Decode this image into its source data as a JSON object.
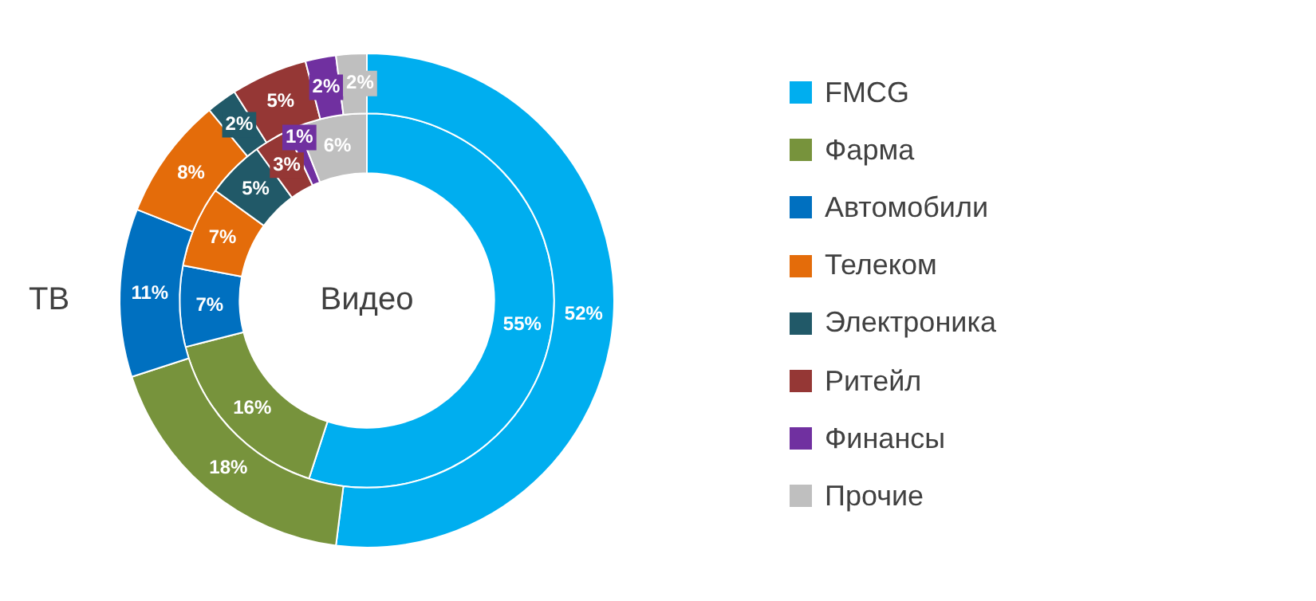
{
  "chart_data": {
    "type": "donut",
    "categories": [
      "FMCG",
      "Фарма",
      "Автомобили",
      "Телеком",
      "Электроника",
      "Ритейл",
      "Финансы",
      "Прочие"
    ],
    "colors": [
      "#00aeef",
      "#77933c",
      "#0070c0",
      "#e46c0a",
      "#215968",
      "#953735",
      "#7030a0",
      "#bfbfbf"
    ],
    "series": [
      {
        "name": "ТВ",
        "values": [
          52,
          18,
          11,
          8,
          2,
          5,
          2,
          2
        ],
        "value_labels": [
          "52%",
          "18%",
          "11%",
          "8%",
          "2%",
          "5%",
          "2%",
          "2%"
        ]
      },
      {
        "name": "Видео",
        "values": [
          55,
          16,
          7,
          7,
          5,
          3,
          1,
          6
        ],
        "value_labels": [
          "55%",
          "16%",
          "7%",
          "7%",
          "5%",
          "3%",
          "1%",
          "6%"
        ]
      }
    ],
    "legend": "right"
  }
}
